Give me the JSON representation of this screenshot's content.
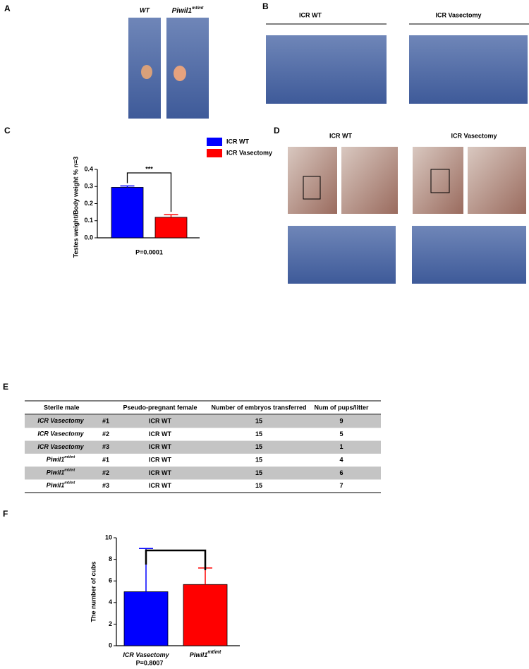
{
  "panels": {
    "a": "A",
    "b": "B",
    "c": "C",
    "d": "D",
    "e": "E",
    "f": "F"
  },
  "panel_a": {
    "wt": "WT",
    "mutant": "Piwil1",
    "mutant_sup": "mt/mt"
  },
  "panel_b": {
    "left": "ICR WT",
    "right": "ICR Vasectomy"
  },
  "panel_d": {
    "left": "ICR WT",
    "right": "ICR Vasectomy"
  },
  "chart_data": [
    {
      "type": "bar",
      "ylabel": "Testes weight/Body weight % n=3",
      "ylim": [
        0,
        0.4
      ],
      "yticks": [
        {
          "value": 0,
          "label": "0.0"
        },
        0.1,
        0.2,
        0.3,
        0.4
      ],
      "series": [
        {
          "name": "ICR WT",
          "color": "#0000ff",
          "values": [
            0.295
          ],
          "errors": [
            0.008
          ]
        },
        {
          "name": "ICR Vasectomy",
          "color": "#ff0000",
          "values": [
            0.12
          ],
          "errors": [
            0.015
          ]
        }
      ],
      "significance": "***",
      "pvalue": "P=0.0001",
      "legend": "upper right"
    },
    {
      "type": "bar",
      "ylabel": "The number of cubs",
      "categories": [
        "ICR Vasectomy",
        "Piwil1"
      ],
      "category_sup": {
        "1": "mt/mt"
      },
      "colors": [
        "#0000ff",
        "#ff0000"
      ],
      "values": [
        5,
        5.67
      ],
      "errors": [
        4,
        1.53
      ],
      "ylim": [
        0,
        10
      ],
      "yticks": [
        0,
        2,
        4,
        6,
        8,
        10
      ],
      "pvalue": "P=0.8007"
    }
  ],
  "table": {
    "headers": [
      "Sterile male",
      "Pseudo-pregnant female",
      "Number of embryos transferred",
      "Num of pups/litter"
    ],
    "rows": [
      {
        "male": "ICR Vasectomy",
        "id": "#1",
        "female": "ICR WT",
        "embryos": 15,
        "pups": 9
      },
      {
        "male": "ICR Vasectomy",
        "id": "#2",
        "female": "ICR WT",
        "embryos": 15,
        "pups": 5
      },
      {
        "male": "ICR Vasectomy",
        "id": "#3",
        "female": "ICR WT",
        "embryos": 15,
        "pups": 1
      },
      {
        "male": "Piwil1",
        "male_sup": "mt/mt",
        "id": "#1",
        "female": "ICR WT",
        "embryos": 15,
        "pups": 4
      },
      {
        "male": "Piwil1",
        "male_sup": "mt/mt",
        "id": "#2",
        "female": "ICR WT",
        "embryos": 15,
        "pups": 6
      },
      {
        "male": "Piwil1",
        "male_sup": "mt/mt",
        "id": "#3",
        "female": "ICR WT",
        "embryos": 15,
        "pups": 7
      }
    ]
  }
}
